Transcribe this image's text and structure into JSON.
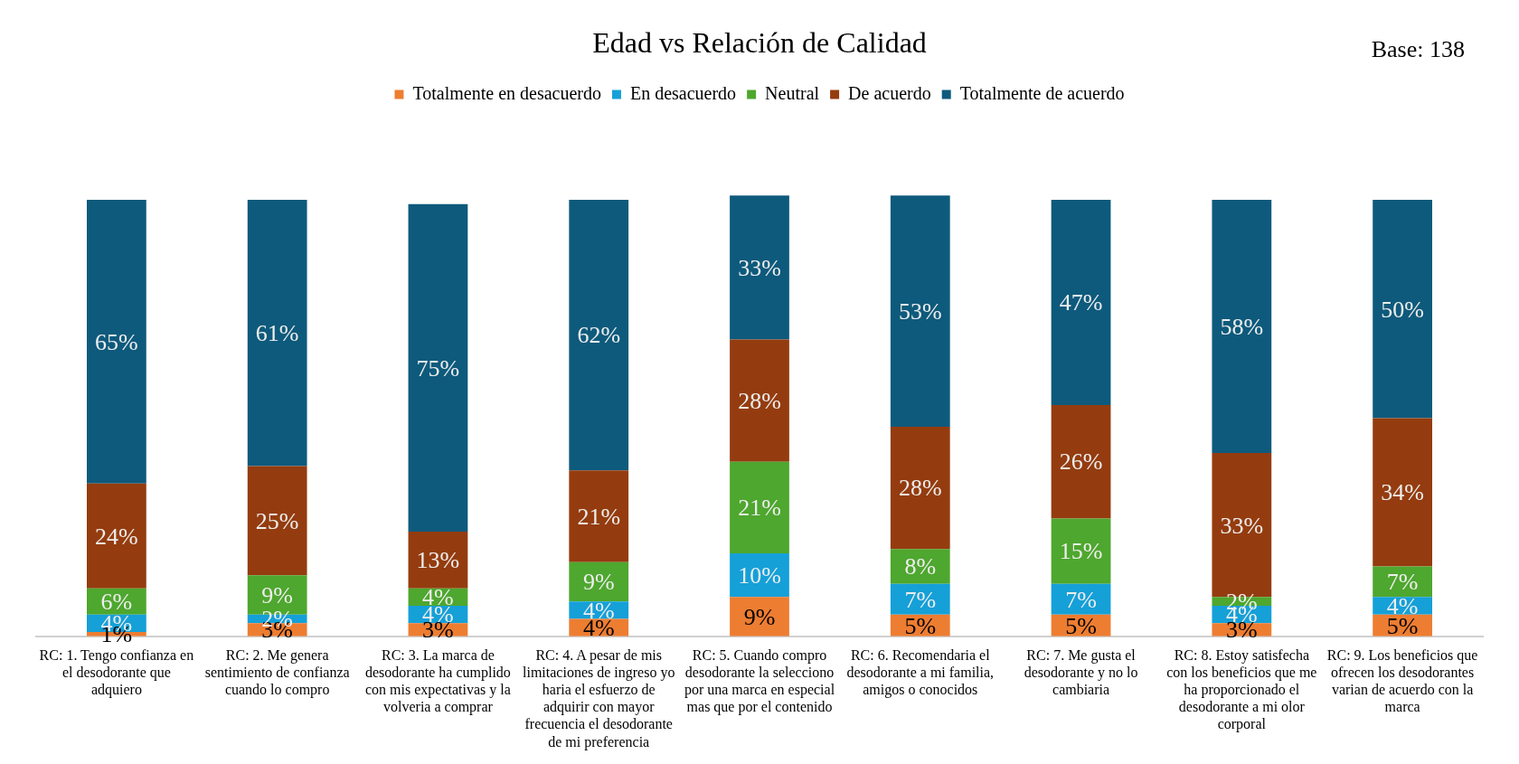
{
  "chart_data": {
    "type": "bar",
    "stacked": true,
    "title": "Edad vs Relación de Calidad",
    "annotations": [
      "Base: 138"
    ],
    "categories": [
      "RC: 1. Tengo confianza en el desodorante que adquiero",
      "RC: 2. Me genera sentimiento de confianza cuando lo compro",
      "RC: 3. La marca de desodorante ha cumplido con mis expectativas y la volveria a comprar",
      "RC: 4. A pesar de mis limitaciones de ingreso yo haria el esfuerzo de adquirir con mayor frecuencia el desodorante de mi preferencia",
      "RC: 5. Cuando compro desodorante la selecciono por una marca en especial mas que por el contenido",
      "RC: 6. Recomendaria el desodorante a mi familia, amigos o conocidos",
      "RC: 7. Me gusta el desodorante y no lo cambiaria",
      "RC: 8. Estoy satisfecha con los beneficios que me ha proporcionado el desodorante a mi olor corporal",
      "RC: 9. Los beneficios que ofrecen los desodorantes varian de acuerdo con la marca"
    ],
    "series": [
      {
        "name": "Totalmente en desacuerdo",
        "color": "#ed7d31",
        "values": [
          1,
          3,
          3,
          4,
          9,
          5,
          5,
          3,
          5
        ],
        "value_labels": [
          "1%",
          "3%",
          "3%",
          "4%",
          "9%",
          "5%",
          "5%",
          "3%",
          "5%"
        ]
      },
      {
        "name": "En desacuerdo",
        "color": "#15a0d8",
        "values": [
          4,
          2,
          4,
          4,
          10,
          7,
          7,
          4,
          4
        ],
        "value_labels": [
          "4%",
          "2%",
          "4%",
          "4%",
          "10%",
          "7%",
          "7%",
          "4%",
          "4%"
        ]
      },
      {
        "name": "Neutral",
        "color": "#4ea72e",
        "values": [
          6,
          9,
          4,
          9,
          21,
          8,
          15,
          2,
          7
        ],
        "value_labels": [
          "6%",
          "9%",
          "4%",
          "9%",
          "21%",
          "8%",
          "15%",
          "2%",
          "7%"
        ]
      },
      {
        "name": "De acuerdo",
        "color": "#943c0f",
        "values": [
          24,
          25,
          13,
          21,
          28,
          28,
          26,
          33,
          34
        ],
        "value_labels": [
          "24%",
          "25%",
          "13%",
          "21%",
          "28%",
          "28%",
          "26%",
          "33%",
          "34%"
        ]
      },
      {
        "name": "Totalmente de acuerdo",
        "color": "#0e5a7c",
        "values": [
          65,
          61,
          75,
          62,
          33,
          53,
          47,
          58,
          50
        ],
        "value_labels": [
          "65%",
          "61%",
          "75%",
          "62%",
          "33%",
          "53%",
          "47%",
          "58%",
          "50%"
        ]
      }
    ],
    "legend": "top",
    "grid": false,
    "tick_labels": "x"
  }
}
